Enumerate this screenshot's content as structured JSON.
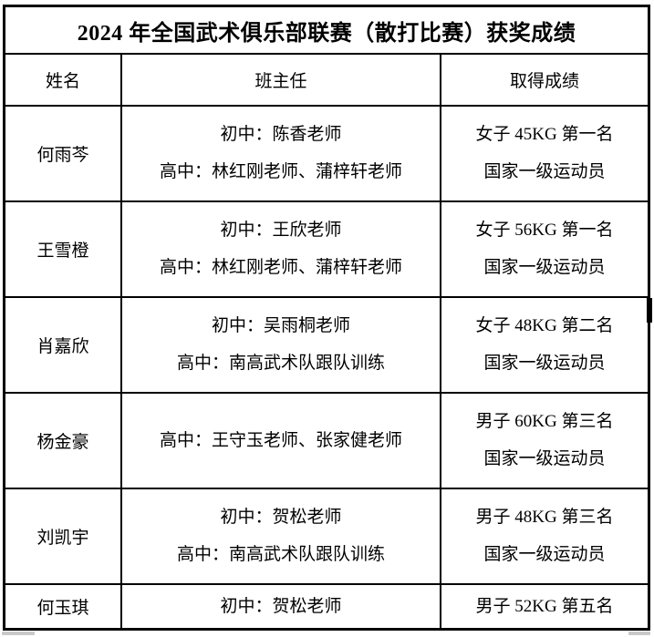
{
  "title": "2024 年全国武术俱乐部联赛（散打比赛）获奖成绩",
  "table": {
    "columns": [
      "姓名",
      "班主任",
      "取得成绩"
    ],
    "rows": [
      {
        "name": "何雨芩",
        "teachers": [
          "初中：陈香老师",
          "高中：林红刚老师、蒲梓轩老师"
        ],
        "results": [
          "女子 45KG 第一名",
          "国家一级运动员"
        ]
      },
      {
        "name": "王雪橙",
        "teachers": [
          "初中：王欣老师",
          "高中：林红刚老师、蒲梓轩老师"
        ],
        "results": [
          "女子 56KG 第一名",
          "国家一级运动员"
        ]
      },
      {
        "name": "肖嘉欣",
        "teachers": [
          "初中：吴雨桐老师",
          "高中：南高武术队跟队训练"
        ],
        "results": [
          "女子 48KG 第二名",
          "国家一级运动员"
        ]
      },
      {
        "name": "杨金豪",
        "teachers": [
          "高中：王守玉老师、张家健老师"
        ],
        "results": [
          "男子 60KG 第三名",
          "国家一级运动员"
        ]
      },
      {
        "name": "刘凯宇",
        "teachers": [
          "初中：贺松老师",
          "高中：南高武术队跟队训练"
        ],
        "results": [
          "男子 48KG 第三名",
          "国家一级运动员"
        ]
      },
      {
        "name": "何玉琪",
        "teachers": [
          "初中：贺松老师"
        ],
        "results": [
          "男子 52KG 第五名"
        ]
      }
    ]
  },
  "colors": {
    "border": "#000000",
    "text": "#000000",
    "background": "#ffffff",
    "scrollbar_fragment": "#c9c9c9",
    "edge_marker": "#000000"
  }
}
